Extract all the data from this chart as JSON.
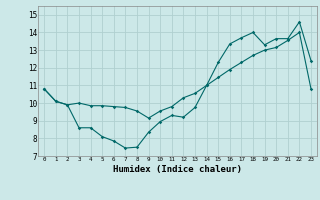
{
  "title": "",
  "xlabel": "Humidex (Indice chaleur)",
  "background_color": "#cce8e8",
  "grid_color": "#b0d0d0",
  "line_color": "#006868",
  "xlim": [
    -0.5,
    23.5
  ],
  "ylim": [
    7,
    15.5
  ],
  "yticks": [
    7,
    8,
    9,
    10,
    11,
    12,
    13,
    14,
    15
  ],
  "xticks": [
    0,
    1,
    2,
    3,
    4,
    5,
    6,
    7,
    8,
    9,
    10,
    11,
    12,
    13,
    14,
    15,
    16,
    17,
    18,
    19,
    20,
    21,
    22,
    23
  ],
  "line1_x": [
    0,
    1,
    2,
    3,
    4,
    5,
    6,
    7,
    8,
    9,
    10,
    11,
    12,
    13,
    14,
    15,
    16,
    17,
    18,
    19,
    20,
    21,
    22,
    23
  ],
  "line1_y": [
    10.8,
    10.1,
    9.9,
    10.0,
    9.85,
    9.85,
    9.8,
    9.75,
    9.55,
    9.15,
    9.55,
    9.8,
    10.3,
    10.55,
    11.0,
    11.45,
    11.9,
    12.3,
    12.7,
    13.0,
    13.15,
    13.55,
    14.0,
    10.8
  ],
  "line2_x": [
    0,
    1,
    2,
    3,
    4,
    5,
    6,
    7,
    8,
    9,
    10,
    11,
    12,
    13,
    14,
    15,
    16,
    17,
    18,
    19,
    20,
    21,
    22,
    23
  ],
  "line2_y": [
    10.8,
    10.1,
    9.9,
    8.6,
    8.6,
    8.1,
    7.85,
    7.45,
    7.5,
    8.35,
    8.95,
    9.3,
    9.2,
    9.75,
    11.0,
    12.3,
    13.35,
    13.7,
    14.0,
    13.3,
    13.65,
    13.65,
    14.6,
    12.4
  ]
}
